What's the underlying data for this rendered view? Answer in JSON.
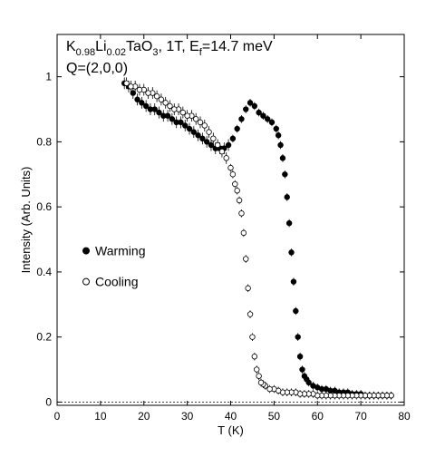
{
  "chart_data": {
    "type": "scatter",
    "title": "",
    "annotation": {
      "line1_parts": [
        {
          "t": "K",
          "sub": false
        },
        {
          "t": "0.98",
          "sub": true
        },
        {
          "t": "Li",
          "sub": false
        },
        {
          "t": "0.02",
          "sub": true
        },
        {
          "t": "TaO",
          "sub": false
        },
        {
          "t": "3",
          "sub": true
        },
        {
          "t": ", 1T, E",
          "sub": false
        },
        {
          "t": "f",
          "sub": true
        },
        {
          "t": "=14.7 meV",
          "sub": false
        }
      ],
      "line2": "Q=(2,0,0)"
    },
    "xlabel": "T (K)",
    "ylabel": "Intensity (Arb. Units)",
    "xlim": [
      0,
      80
    ],
    "ylim": [
      -0.01,
      1.13
    ],
    "xticks": [
      "0",
      "10",
      "20",
      "30",
      "40",
      "50",
      "60",
      "70",
      "80"
    ],
    "yticks": [
      "0",
      "0.2",
      "0.4",
      "0.6",
      "0.8",
      "1"
    ],
    "grid": false,
    "baseline": 0,
    "legend": {
      "placement": "left-middle"
    },
    "series": [
      {
        "name": "Warming",
        "marker": "filled-circle",
        "x": [
          15.5,
          16.5,
          17.5,
          18.5,
          19.5,
          20.5,
          21.5,
          22.5,
          23.5,
          24.5,
          25.5,
          26.5,
          27.5,
          28.5,
          29.5,
          30.5,
          31.5,
          32.5,
          33.5,
          34.5,
          35.5,
          36.5,
          37.5,
          38.5,
          39.5,
          40.5,
          41.5,
          42.5,
          43.5,
          44.5,
          45.5,
          46.5,
          47.5,
          48.5,
          49.5,
          50.5,
          51.0,
          51.5,
          52.0,
          52.5,
          53.0,
          53.5,
          54.0,
          54.5,
          55.0,
          55.5,
          56.0,
          56.5,
          57.0,
          57.5,
          58.0,
          59.0,
          60.0,
          61.0,
          62.0,
          63.0,
          64.0,
          65.0,
          66.0,
          67.0,
          68.0,
          69.0,
          70.0,
          71.0,
          72.0,
          73.0,
          74.0,
          75.0,
          76.0,
          77.0
        ],
        "values": [
          0.98,
          0.97,
          0.95,
          0.93,
          0.92,
          0.91,
          0.9,
          0.9,
          0.89,
          0.88,
          0.88,
          0.87,
          0.86,
          0.86,
          0.85,
          0.84,
          0.83,
          0.82,
          0.81,
          0.8,
          0.79,
          0.78,
          0.78,
          0.78,
          0.79,
          0.81,
          0.84,
          0.87,
          0.9,
          0.92,
          0.91,
          0.89,
          0.88,
          0.87,
          0.86,
          0.84,
          0.82,
          0.79,
          0.75,
          0.7,
          0.63,
          0.55,
          0.46,
          0.37,
          0.28,
          0.2,
          0.14,
          0.1,
          0.08,
          0.07,
          0.06,
          0.05,
          0.045,
          0.04,
          0.04,
          0.035,
          0.035,
          0.03,
          0.03,
          0.03,
          0.025,
          0.025,
          0.025,
          0.02,
          0.02,
          0.02,
          0.02,
          0.02,
          0.02,
          0.02
        ]
      },
      {
        "name": "Cooling",
        "marker": "open-circle",
        "x": [
          77.0,
          76.0,
          75.0,
          74.0,
          73.0,
          72.0,
          71.0,
          70.0,
          69.0,
          68.0,
          67.0,
          66.0,
          65.0,
          64.0,
          63.0,
          62.0,
          61.0,
          60.0,
          59.0,
          58.0,
          57.0,
          56.0,
          55.0,
          54.0,
          53.0,
          52.0,
          51.0,
          50.0,
          49.0,
          48.0,
          47.5,
          47.0,
          46.5,
          46.0,
          45.5,
          45.0,
          44.5,
          44.0,
          43.5,
          43.0,
          42.5,
          42.0,
          41.5,
          41.0,
          40.5,
          40.0,
          39.0,
          38.0,
          37.0,
          36.0,
          35.0,
          34.0,
          33.0,
          32.0,
          31.0,
          30.0,
          29.0,
          28.0,
          27.0,
          26.0,
          25.0,
          24.0,
          23.0,
          22.0,
          21.0,
          20.0,
          19.0,
          18.0,
          17.0,
          16.0
        ],
        "values": [
          0.02,
          0.02,
          0.02,
          0.02,
          0.02,
          0.02,
          0.02,
          0.02,
          0.02,
          0.02,
          0.02,
          0.02,
          0.02,
          0.02,
          0.02,
          0.02,
          0.02,
          0.02,
          0.025,
          0.025,
          0.025,
          0.025,
          0.03,
          0.03,
          0.03,
          0.03,
          0.035,
          0.04,
          0.04,
          0.05,
          0.055,
          0.06,
          0.08,
          0.1,
          0.14,
          0.2,
          0.27,
          0.35,
          0.44,
          0.52,
          0.58,
          0.62,
          0.65,
          0.67,
          0.7,
          0.72,
          0.75,
          0.77,
          0.79,
          0.81,
          0.83,
          0.85,
          0.86,
          0.87,
          0.88,
          0.88,
          0.89,
          0.9,
          0.9,
          0.91,
          0.92,
          0.93,
          0.94,
          0.95,
          0.95,
          0.96,
          0.96,
          0.97,
          0.97,
          0.98
        ]
      }
    ]
  }
}
